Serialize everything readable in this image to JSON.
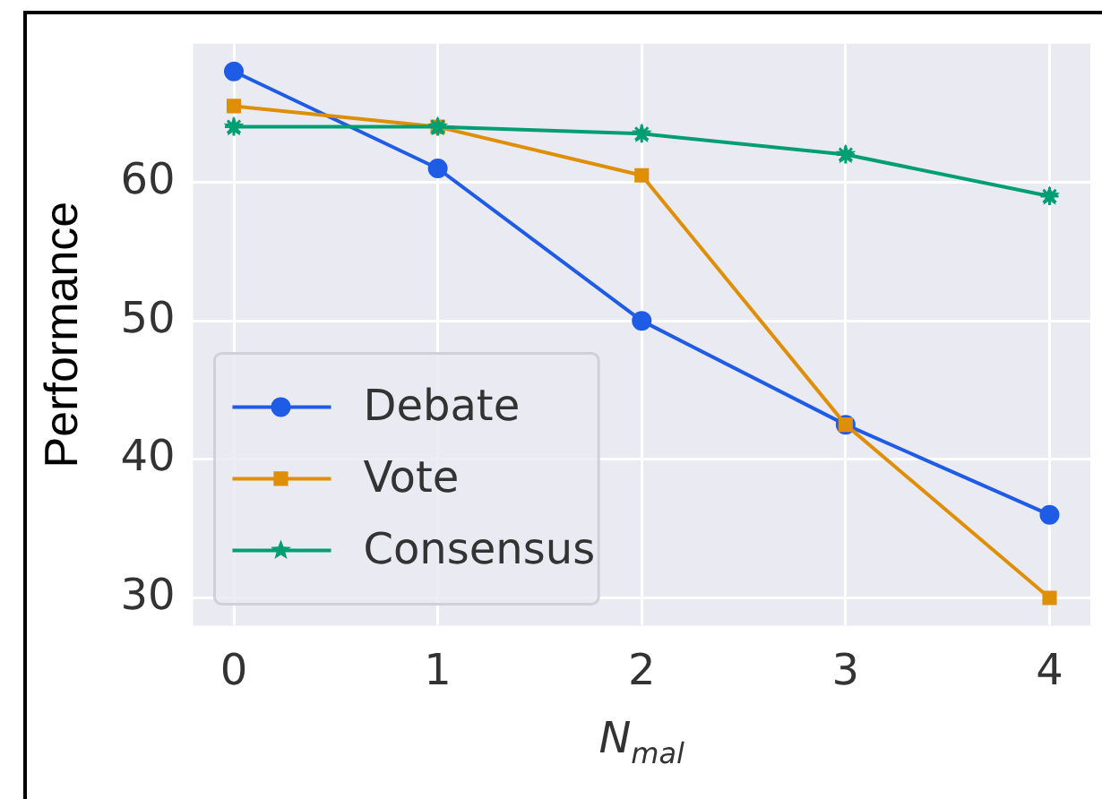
{
  "chart_data": {
    "type": "line",
    "xlabel": "N$_{mal}$",
    "ylabel": "Performance",
    "x": [
      0,
      1,
      2,
      3,
      4
    ],
    "xlim": [
      -0.2,
      4.2
    ],
    "xticks": [
      0,
      1,
      2,
      3,
      4
    ],
    "ylim": [
      28,
      70
    ],
    "yticks": [
      30,
      40,
      50,
      60
    ],
    "grid": true,
    "legend": "bottom left",
    "line_style": "solid",
    "series": [
      {
        "name": "Debate",
        "color": "#1f5ce6",
        "marker": "circle",
        "values": [
          68,
          61,
          50,
          42.5,
          36
        ]
      },
      {
        "name": "Vote",
        "color": "#de8f05",
        "marker": "square",
        "values": [
          65.5,
          64,
          60.5,
          42.5,
          30
        ]
      },
      {
        "name": "Consensus",
        "color": "#029e73",
        "marker": "star",
        "values": [
          64,
          64,
          63.5,
          62,
          59
        ]
      }
    ]
  }
}
